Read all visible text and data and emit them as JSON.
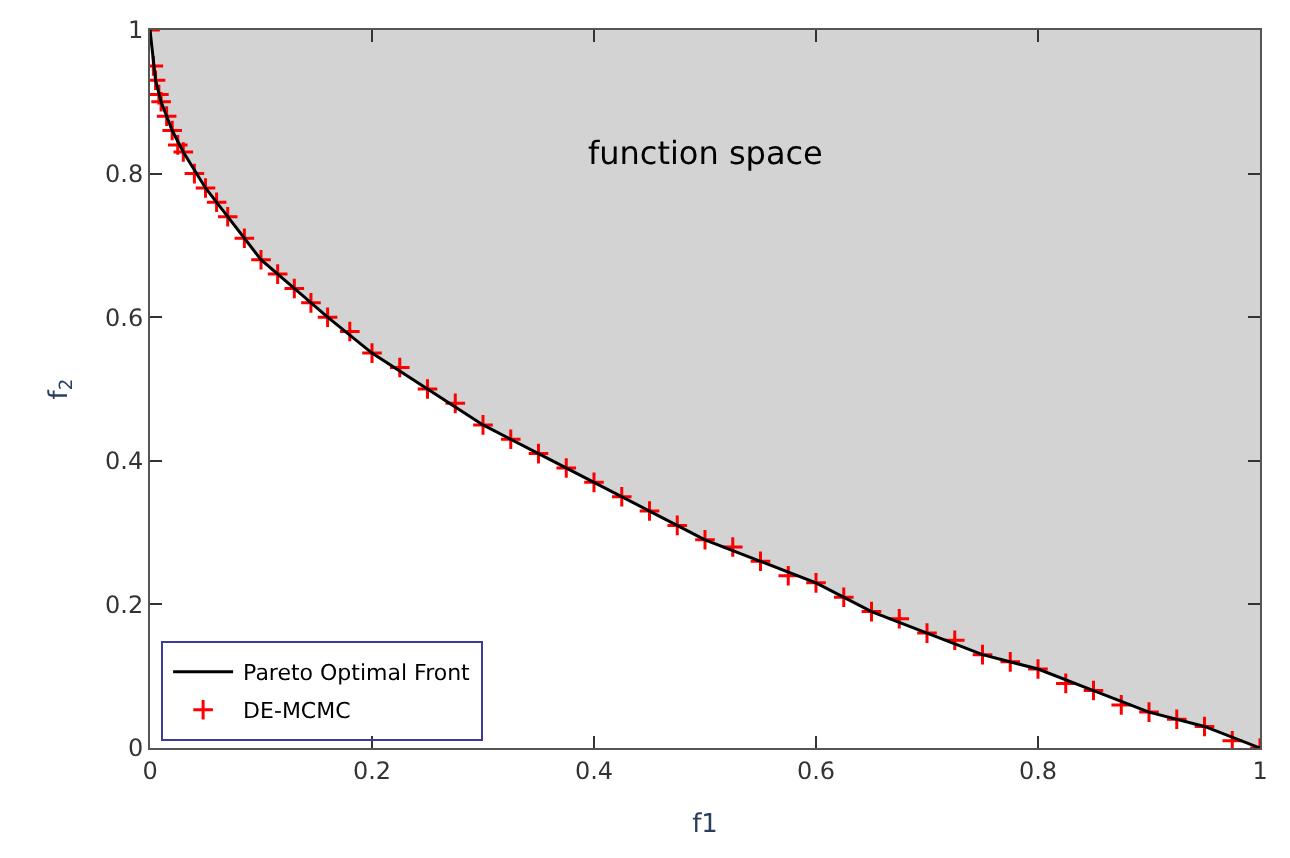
{
  "chart_data": {
    "type": "scatter",
    "xlabel": "f1",
    "ylabel": "f$_{2}$",
    "annotations": [
      "function space"
    ],
    "xlim": [
      0,
      1
    ],
    "ylim": [
      0,
      1
    ],
    "xticks": [
      0,
      0.2,
      0.4,
      0.6,
      0.8,
      1
    ],
    "yticks": [
      0,
      0.2,
      0.4,
      0.6,
      0.8,
      1
    ],
    "grid": false,
    "legend": "bottom left",
    "series": [
      {
        "name": "DE-MCMC",
        "type": "scatter",
        "color": "#ff0000",
        "marker": "cross",
        "x": [
          0,
          0.003,
          0.005,
          0.008,
          0.01,
          0.015,
          0.02,
          0.025,
          0.03,
          0.04,
          0.05,
          0.06,
          0.07,
          0.085,
          0.1,
          0.115,
          0.13,
          0.145,
          0.16,
          0.18,
          0.2,
          0.225,
          0.25,
          0.275,
          0.3,
          0.325,
          0.35,
          0.375,
          0.4,
          0.425,
          0.45,
          0.475,
          0.5,
          0.525,
          0.55,
          0.575,
          0.6,
          0.625,
          0.65,
          0.675,
          0.7,
          0.725,
          0.75,
          0.775,
          0.8,
          0.825,
          0.85,
          0.875,
          0.9,
          0.925,
          0.95,
          0.975,
          1
        ],
        "values": [
          1.0,
          0.95,
          0.93,
          0.91,
          0.9,
          0.88,
          0.86,
          0.84,
          0.83,
          0.8,
          0.78,
          0.76,
          0.74,
          0.71,
          0.68,
          0.66,
          0.64,
          0.62,
          0.6,
          0.58,
          0.55,
          0.53,
          0.5,
          0.48,
          0.45,
          0.43,
          0.41,
          0.39,
          0.37,
          0.35,
          0.33,
          0.31,
          0.29,
          0.28,
          0.26,
          0.24,
          0.23,
          0.21,
          0.19,
          0.18,
          0.16,
          0.15,
          0.13,
          0.12,
          0.11,
          0.09,
          0.08,
          0.06,
          0.05,
          0.04,
          0.03,
          0.01,
          0.0
        ]
      },
      {
        "name": "Pareto Optimal Front",
        "type": "line",
        "color": "#000000",
        "line_style": "solid",
        "marker": "none",
        "x": [
          0,
          0.005,
          0.01,
          0.02,
          0.03,
          0.05,
          0.07,
          0.1,
          0.13,
          0.16,
          0.2,
          0.25,
          0.3,
          0.35,
          0.4,
          0.45,
          0.5,
          0.55,
          0.6,
          0.65,
          0.7,
          0.75,
          0.8,
          0.85,
          0.9,
          0.95,
          1
        ],
        "values": [
          1.0,
          0.93,
          0.9,
          0.86,
          0.83,
          0.78,
          0.74,
          0.68,
          0.64,
          0.6,
          0.55,
          0.5,
          0.45,
          0.41,
          0.37,
          0.33,
          0.29,
          0.26,
          0.23,
          0.19,
          0.16,
          0.13,
          0.11,
          0.08,
          0.05,
          0.03,
          0.0
        ]
      }
    ]
  }
}
